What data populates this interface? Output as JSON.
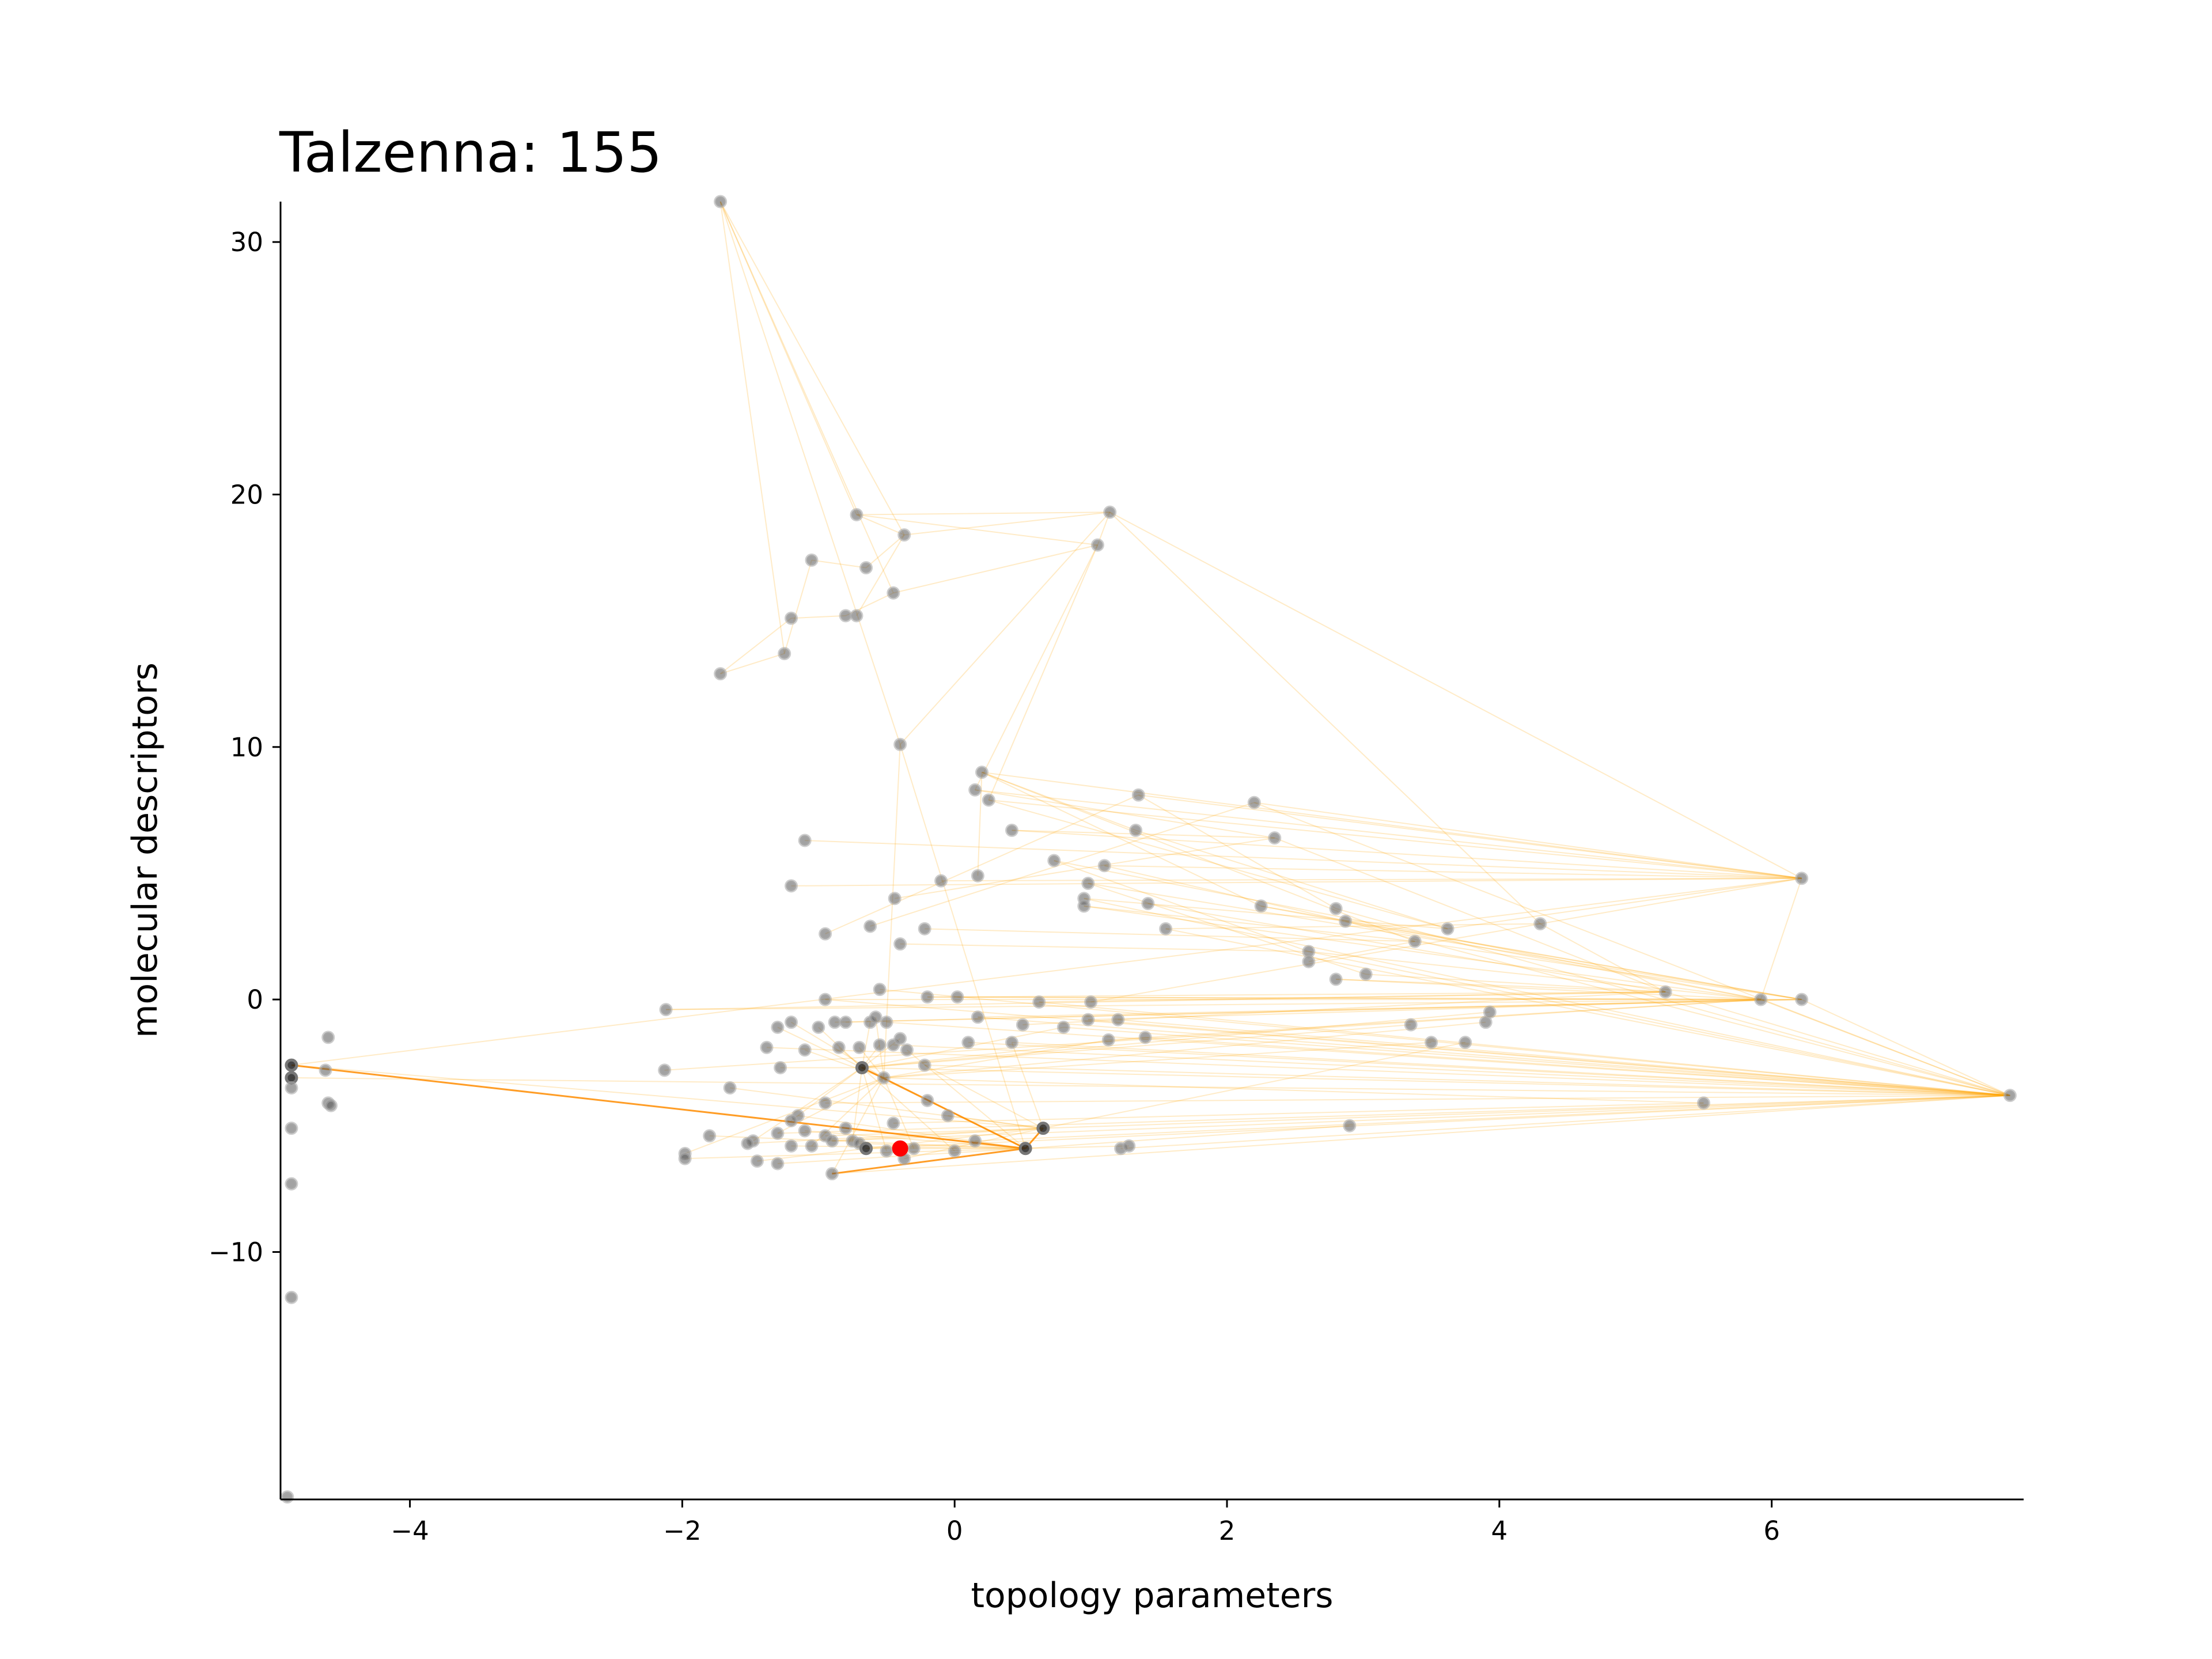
{
  "chart_data": {
    "type": "scatter",
    "title": "Talzenna: 155",
    "xlabel": "topology parameters",
    "ylabel": "molecular descriptors",
    "xlim": [
      -4.95,
      7.85
    ],
    "ylim": [
      -19.8,
      31.6
    ],
    "xticks": [
      -4,
      -2,
      0,
      2,
      4,
      6
    ],
    "yticks": [
      -10,
      0,
      10,
      20,
      30
    ],
    "xtick_labels": [
      "−4",
      "−2",
      "0",
      "2",
      "4",
      "6"
    ],
    "ytick_labels": [
      "−10",
      "0",
      "10",
      "20",
      "30"
    ],
    "grid": false,
    "highlight": {
      "x": -0.4,
      "y": -5.9,
      "color": "#ff0000"
    },
    "edge_color": "#ffa500",
    "points": [
      [
        -1.72,
        31.6
      ],
      [
        -1.72,
        12.9
      ],
      [
        -1.25,
        13.7
      ],
      [
        -1.2,
        15.1
      ],
      [
        -1.05,
        17.4
      ],
      [
        -0.8,
        15.2
      ],
      [
        -0.72,
        15.2
      ],
      [
        -0.65,
        17.1
      ],
      [
        -0.72,
        19.2
      ],
      [
        -0.45,
        16.1
      ],
      [
        -0.37,
        18.4
      ],
      [
        1.14,
        19.3
      ],
      [
        1.05,
        18.0
      ],
      [
        -0.4,
        10.1
      ],
      [
        0.2,
        9.0
      ],
      [
        0.15,
        8.3
      ],
      [
        0.25,
        7.9
      ],
      [
        0.42,
        6.7
      ],
      [
        0.73,
        5.5
      ],
      [
        1.1,
        5.3
      ],
      [
        0.98,
        4.6
      ],
      [
        0.95,
        4.0
      ],
      [
        0.95,
        3.7
      ],
      [
        1.35,
        8.1
      ],
      [
        1.33,
        6.7
      ],
      [
        1.42,
        3.8
      ],
      [
        1.55,
        2.8
      ],
      [
        2.2,
        7.8
      ],
      [
        2.35,
        6.4
      ],
      [
        2.25,
        3.7
      ],
      [
        2.6,
        1.9
      ],
      [
        2.6,
        1.5
      ],
      [
        2.8,
        3.6
      ],
      [
        2.87,
        3.1
      ],
      [
        2.8,
        0.8
      ],
      [
        3.02,
        1.0
      ],
      [
        3.38,
        2.3
      ],
      [
        3.62,
        2.8
      ],
      [
        4.3,
        3.0
      ],
      [
        6.22,
        4.8
      ],
      [
        5.22,
        0.3
      ],
      [
        5.92,
        0.0
      ],
      [
        6.22,
        0.0
      ],
      [
        7.75,
        -3.8
      ],
      [
        5.5,
        -4.1
      ],
      [
        2.9,
        -5.0
      ],
      [
        3.35,
        -1.0
      ],
      [
        3.5,
        -1.7
      ],
      [
        3.75,
        -1.7
      ],
      [
        3.9,
        -0.9
      ],
      [
        3.93,
        -0.5
      ],
      [
        -1.1,
        6.3
      ],
      [
        -1.2,
        4.5
      ],
      [
        -0.95,
        2.6
      ],
      [
        -0.62,
        2.9
      ],
      [
        -0.44,
        4.0
      ],
      [
        -0.4,
        2.2
      ],
      [
        -0.1,
        4.7
      ],
      [
        -0.22,
        2.8
      ],
      [
        0.17,
        4.9
      ],
      [
        -0.55,
        0.4
      ],
      [
        -0.95,
        0.0
      ],
      [
        -0.2,
        0.1
      ],
      [
        0.02,
        0.1
      ],
      [
        0.62,
        -0.1
      ],
      [
        1.0,
        -0.1
      ],
      [
        0.17,
        -0.7
      ],
      [
        1.2,
        -0.8
      ],
      [
        0.98,
        -0.8
      ],
      [
        0.5,
        -1.0
      ],
      [
        0.8,
        -1.1
      ],
      [
        1.13,
        -1.6
      ],
      [
        1.4,
        -1.5
      ],
      [
        0.42,
        -1.7
      ],
      [
        0.1,
        -1.7
      ],
      [
        -2.12,
        -0.4
      ],
      [
        -2.13,
        -2.8
      ],
      [
        -1.65,
        -3.5
      ],
      [
        -1.3,
        -1.1
      ],
      [
        -1.2,
        -0.9
      ],
      [
        -1.38,
        -1.9
      ],
      [
        -1.28,
        -2.7
      ],
      [
        -1.1,
        -2.0
      ],
      [
        -1.0,
        -1.1
      ],
      [
        -0.88,
        -0.9
      ],
      [
        -0.8,
        -0.9
      ],
      [
        -0.62,
        -0.9
      ],
      [
        -0.58,
        -0.7
      ],
      [
        -0.5,
        -0.9
      ],
      [
        -0.85,
        -1.9
      ],
      [
        -0.7,
        -1.9
      ],
      [
        -0.55,
        -1.8
      ],
      [
        -0.45,
        -1.8
      ],
      [
        -0.4,
        -1.55
      ],
      [
        -0.68,
        -2.7
      ],
      [
        -0.52,
        -3.1
      ],
      [
        -0.35,
        -2.0
      ],
      [
        -0.22,
        -2.6
      ],
      [
        -0.95,
        -4.1
      ],
      [
        -0.45,
        -4.9
      ],
      [
        -0.2,
        -4.0
      ],
      [
        -0.05,
        -4.6
      ],
      [
        -1.15,
        -4.6
      ],
      [
        -1.2,
        -4.8
      ],
      [
        -1.3,
        -5.3
      ],
      [
        -1.1,
        -5.2
      ],
      [
        -0.95,
        -5.4
      ],
      [
        -0.8,
        -5.1
      ],
      [
        -0.75,
        -5.6
      ],
      [
        -0.7,
        -5.7
      ],
      [
        -0.9,
        -5.6
      ],
      [
        -1.05,
        -5.8
      ],
      [
        -1.2,
        -5.8
      ],
      [
        -1.48,
        -5.6
      ],
      [
        -1.52,
        -5.7
      ],
      [
        -1.8,
        -5.4
      ],
      [
        -1.98,
        -6.1
      ],
      [
        -1.98,
        -6.3
      ],
      [
        -1.45,
        -6.4
      ],
      [
        -1.3,
        -6.5
      ],
      [
        -0.9,
        -6.9
      ],
      [
        -0.65,
        -5.9
      ],
      [
        -0.5,
        -6.0
      ],
      [
        -0.37,
        -6.3
      ],
      [
        -0.3,
        -5.9
      ],
      [
        0.0,
        -6.0
      ],
      [
        0.15,
        -5.6
      ],
      [
        0.52,
        -5.9
      ],
      [
        0.65,
        -5.1
      ],
      [
        1.22,
        -5.9
      ],
      [
        1.28,
        -5.8
      ],
      [
        -4.87,
        -2.6
      ],
      [
        -4.87,
        -3.1
      ],
      [
        -4.87,
        -3.5
      ],
      [
        -4.87,
        -5.1
      ],
      [
        -4.87,
        -7.3
      ],
      [
        -4.87,
        -11.8
      ],
      [
        -4.9,
        -19.7
      ],
      [
        -4.6,
        -1.5
      ],
      [
        -4.62,
        -2.8
      ],
      [
        -4.6,
        -4.1
      ],
      [
        -4.58,
        -4.2
      ]
    ],
    "edges": [
      [
        0,
        8
      ],
      [
        0,
        9
      ],
      [
        0,
        10
      ],
      [
        0,
        13
      ],
      [
        0,
        2
      ],
      [
        1,
        2
      ],
      [
        1,
        3
      ],
      [
        2,
        4
      ],
      [
        3,
        5
      ],
      [
        4,
        7
      ],
      [
        5,
        9
      ],
      [
        6,
        10
      ],
      [
        7,
        10
      ],
      [
        8,
        11
      ],
      [
        8,
        12
      ],
      [
        9,
        12
      ],
      [
        10,
        11
      ],
      [
        11,
        12
      ],
      [
        11,
        13
      ],
      [
        11,
        38
      ],
      [
        11,
        39
      ],
      [
        12,
        15
      ],
      [
        12,
        16
      ],
      [
        8,
        10
      ],
      [
        13,
        127
      ],
      [
        13,
        95
      ],
      [
        14,
        29
      ],
      [
        14,
        36
      ],
      [
        14,
        39
      ],
      [
        15,
        28
      ],
      [
        16,
        37
      ],
      [
        17,
        28
      ],
      [
        18,
        30
      ],
      [
        19,
        33
      ],
      [
        20,
        35
      ],
      [
        21,
        37
      ],
      [
        22,
        36
      ],
      [
        23,
        32
      ],
      [
        24,
        37
      ],
      [
        25,
        40
      ],
      [
        26,
        38
      ],
      [
        27,
        39
      ],
      [
        28,
        40
      ],
      [
        29,
        42
      ],
      [
        30,
        41
      ],
      [
        31,
        36
      ],
      [
        33,
        42
      ],
      [
        34,
        41
      ],
      [
        35,
        40
      ],
      [
        36,
        42
      ],
      [
        37,
        39
      ],
      [
        38,
        40
      ],
      [
        39,
        41
      ],
      [
        40,
        43
      ],
      [
        41,
        43
      ],
      [
        42,
        43
      ],
      [
        43,
        128
      ],
      [
        43,
        94
      ],
      [
        44,
        95
      ],
      [
        45,
        127
      ],
      [
        46,
        94
      ],
      [
        47,
        95
      ],
      [
        48,
        128
      ],
      [
        49,
        95
      ],
      [
        50,
        94
      ],
      [
        51,
        39
      ],
      [
        52,
        39
      ],
      [
        53,
        23
      ],
      [
        54,
        27
      ],
      [
        55,
        28
      ],
      [
        56,
        30
      ],
      [
        57,
        39
      ],
      [
        58,
        36
      ],
      [
        59,
        14
      ],
      [
        60,
        43
      ],
      [
        61,
        41
      ],
      [
        62,
        42
      ],
      [
        63,
        40
      ],
      [
        64,
        43
      ],
      [
        65,
        39
      ],
      [
        66,
        42
      ],
      [
        67,
        43
      ],
      [
        68,
        41
      ],
      [
        69,
        40
      ],
      [
        70,
        94
      ],
      [
        71,
        95
      ],
      [
        72,
        94
      ],
      [
        73,
        128
      ],
      [
        74,
        43
      ],
      [
        75,
        42
      ],
      [
        76,
        41
      ],
      [
        77,
        128
      ],
      [
        78,
        94
      ],
      [
        79,
        95
      ],
      [
        80,
        43
      ],
      [
        81,
        94
      ],
      [
        82,
        95
      ],
      [
        83,
        94
      ],
      [
        84,
        42
      ],
      [
        85,
        41
      ],
      [
        86,
        94
      ],
      [
        87,
        95
      ],
      [
        88,
        43
      ],
      [
        89,
        94
      ],
      [
        90,
        95
      ],
      [
        91,
        94
      ],
      [
        92,
        43
      ],
      [
        93,
        94
      ],
      [
        94,
        95
      ],
      [
        94,
        127
      ],
      [
        95,
        127
      ],
      [
        96,
        127
      ],
      [
        97,
        128
      ],
      [
        98,
        43
      ],
      [
        99,
        44
      ],
      [
        100,
        127
      ],
      [
        101,
        128
      ],
      [
        102,
        127
      ],
      [
        103,
        94
      ],
      [
        104,
        95
      ],
      [
        105,
        127
      ],
      [
        106,
        128
      ],
      [
        107,
        127
      ],
      [
        108,
        94
      ],
      [
        109,
        127
      ],
      [
        110,
        128
      ],
      [
        111,
        95
      ],
      [
        112,
        127
      ],
      [
        113,
        94
      ],
      [
        114,
        128
      ],
      [
        115,
        127
      ],
      [
        116,
        95
      ],
      [
        117,
        127
      ],
      [
        118,
        128
      ],
      [
        119,
        127
      ],
      [
        120,
        95
      ],
      [
        121,
        127
      ],
      [
        122,
        94
      ],
      [
        123,
        128
      ],
      [
        124,
        95
      ],
      [
        125,
        94
      ],
      [
        126,
        43
      ],
      [
        127,
        128
      ],
      [
        128,
        131
      ],
      [
        129,
        43
      ],
      [
        130,
        127
      ],
      [
        131,
        39
      ],
      [
        132,
        43
      ],
      [
        24,
        14
      ],
      [
        23,
        39
      ],
      [
        17,
        39
      ],
      [
        19,
        39
      ],
      [
        26,
        43
      ],
      [
        27,
        43
      ],
      [
        21,
        43
      ],
      [
        22,
        41
      ],
      [
        18,
        41
      ],
      [
        20,
        42
      ],
      [
        15,
        39
      ],
      [
        16,
        39
      ],
      [
        33,
        43
      ],
      [
        30,
        43
      ],
      [
        29,
        41
      ],
      [
        32,
        43
      ],
      [
        34,
        40
      ],
      [
        61,
        43
      ],
      [
        62,
        41
      ],
      [
        64,
        40
      ],
      [
        66,
        43
      ],
      [
        68,
        43
      ],
      [
        70,
        43
      ],
      [
        71,
        41
      ],
      [
        72,
        43
      ],
      [
        73,
        43
      ],
      [
        75,
        40
      ],
      [
        97,
        43
      ],
      [
        104,
        43
      ],
      [
        110,
        43
      ],
      [
        120,
        43
      ],
      [
        121,
        43
      ]
    ],
    "strong_edges": [
      [
        127,
        128
      ],
      [
        127,
        94
      ],
      [
        127,
        131
      ],
      [
        127,
        120
      ]
    ]
  }
}
